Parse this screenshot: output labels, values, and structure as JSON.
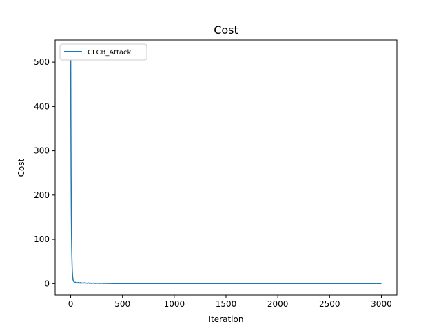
{
  "chart_data": {
    "type": "line",
    "title": "Cost",
    "xlabel": "Iteration",
    "ylabel": "Cost",
    "xlim": [
      -150,
      3150
    ],
    "ylim": [
      -26,
      550
    ],
    "xticks": [
      0,
      500,
      1000,
      1500,
      2000,
      2500,
      3000
    ],
    "yticks": [
      0,
      100,
      200,
      300,
      400,
      500
    ],
    "grid": false,
    "legend_position": "top-left",
    "colors": {
      "series": "#1f77b4",
      "axes": "#000000",
      "background": "#ffffff"
    },
    "series": [
      {
        "name": "CLCB_Attack",
        "x": [
          0,
          2,
          4,
          6,
          8,
          10,
          12,
          14,
          16,
          18,
          20,
          22,
          24,
          26,
          28,
          30,
          34,
          38,
          42,
          46,
          50,
          55,
          60,
          65,
          70,
          75,
          80,
          85,
          90,
          95,
          100,
          110,
          120,
          130,
          140,
          150,
          160,
          170,
          180,
          190,
          200,
          220,
          240,
          260,
          280,
          300,
          320,
          340,
          360,
          380,
          400,
          500,
          1000,
          1500,
          2000,
          2500,
          3000
        ],
        "y": [
          530,
          360,
          240,
          160,
          110,
          78,
          55,
          38,
          27,
          19,
          14,
          10,
          8,
          6.5,
          5.5,
          4.5,
          3.6,
          3.0,
          2.5,
          3.2,
          1.8,
          2.6,
          1.4,
          2.2,
          1.2,
          2.8,
          1.0,
          1.9,
          0.9,
          2.4,
          0.8,
          1.6,
          0.7,
          2.0,
          0.6,
          1.4,
          0.6,
          1.8,
          0.5,
          1.2,
          0.5,
          1.0,
          0.4,
          0.9,
          0.4,
          0.8,
          0.3,
          0.7,
          0.3,
          0.2,
          0.1,
          0.05,
          0.02,
          0.01,
          0.01,
          0.01,
          0.01
        ]
      }
    ]
  }
}
